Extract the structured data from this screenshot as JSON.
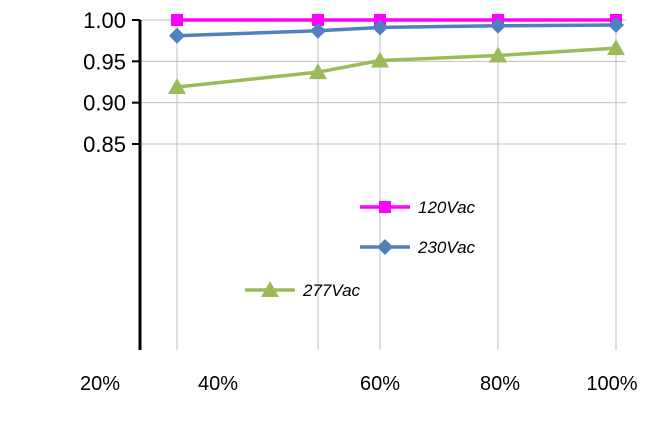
{
  "chart_data": {
    "type": "line",
    "categories": [
      "20%",
      "40%",
      "60%",
      "80%",
      "100%"
    ],
    "ylim": [
      0.85,
      1.0
    ],
    "yticks": [
      "1.00",
      "0.95",
      "0.90",
      "0.85"
    ],
    "grid": true,
    "legend_position": "center-right",
    "series": [
      {
        "name": "120Vac",
        "color": "#ff00ff",
        "marker": "square",
        "values": [
          1.0,
          1.0,
          1.0,
          1.0,
          1.0
        ]
      },
      {
        "name": "230Vac",
        "color": "#4f81bd",
        "marker": "diamond",
        "values": [
          0.981,
          0.987,
          0.991,
          0.993,
          0.994
        ]
      },
      {
        "name": "277Vac",
        "color": "#9bbb59",
        "marker": "triangle",
        "values": [
          0.919,
          0.937,
          0.951,
          0.957,
          0.966
        ]
      }
    ]
  }
}
